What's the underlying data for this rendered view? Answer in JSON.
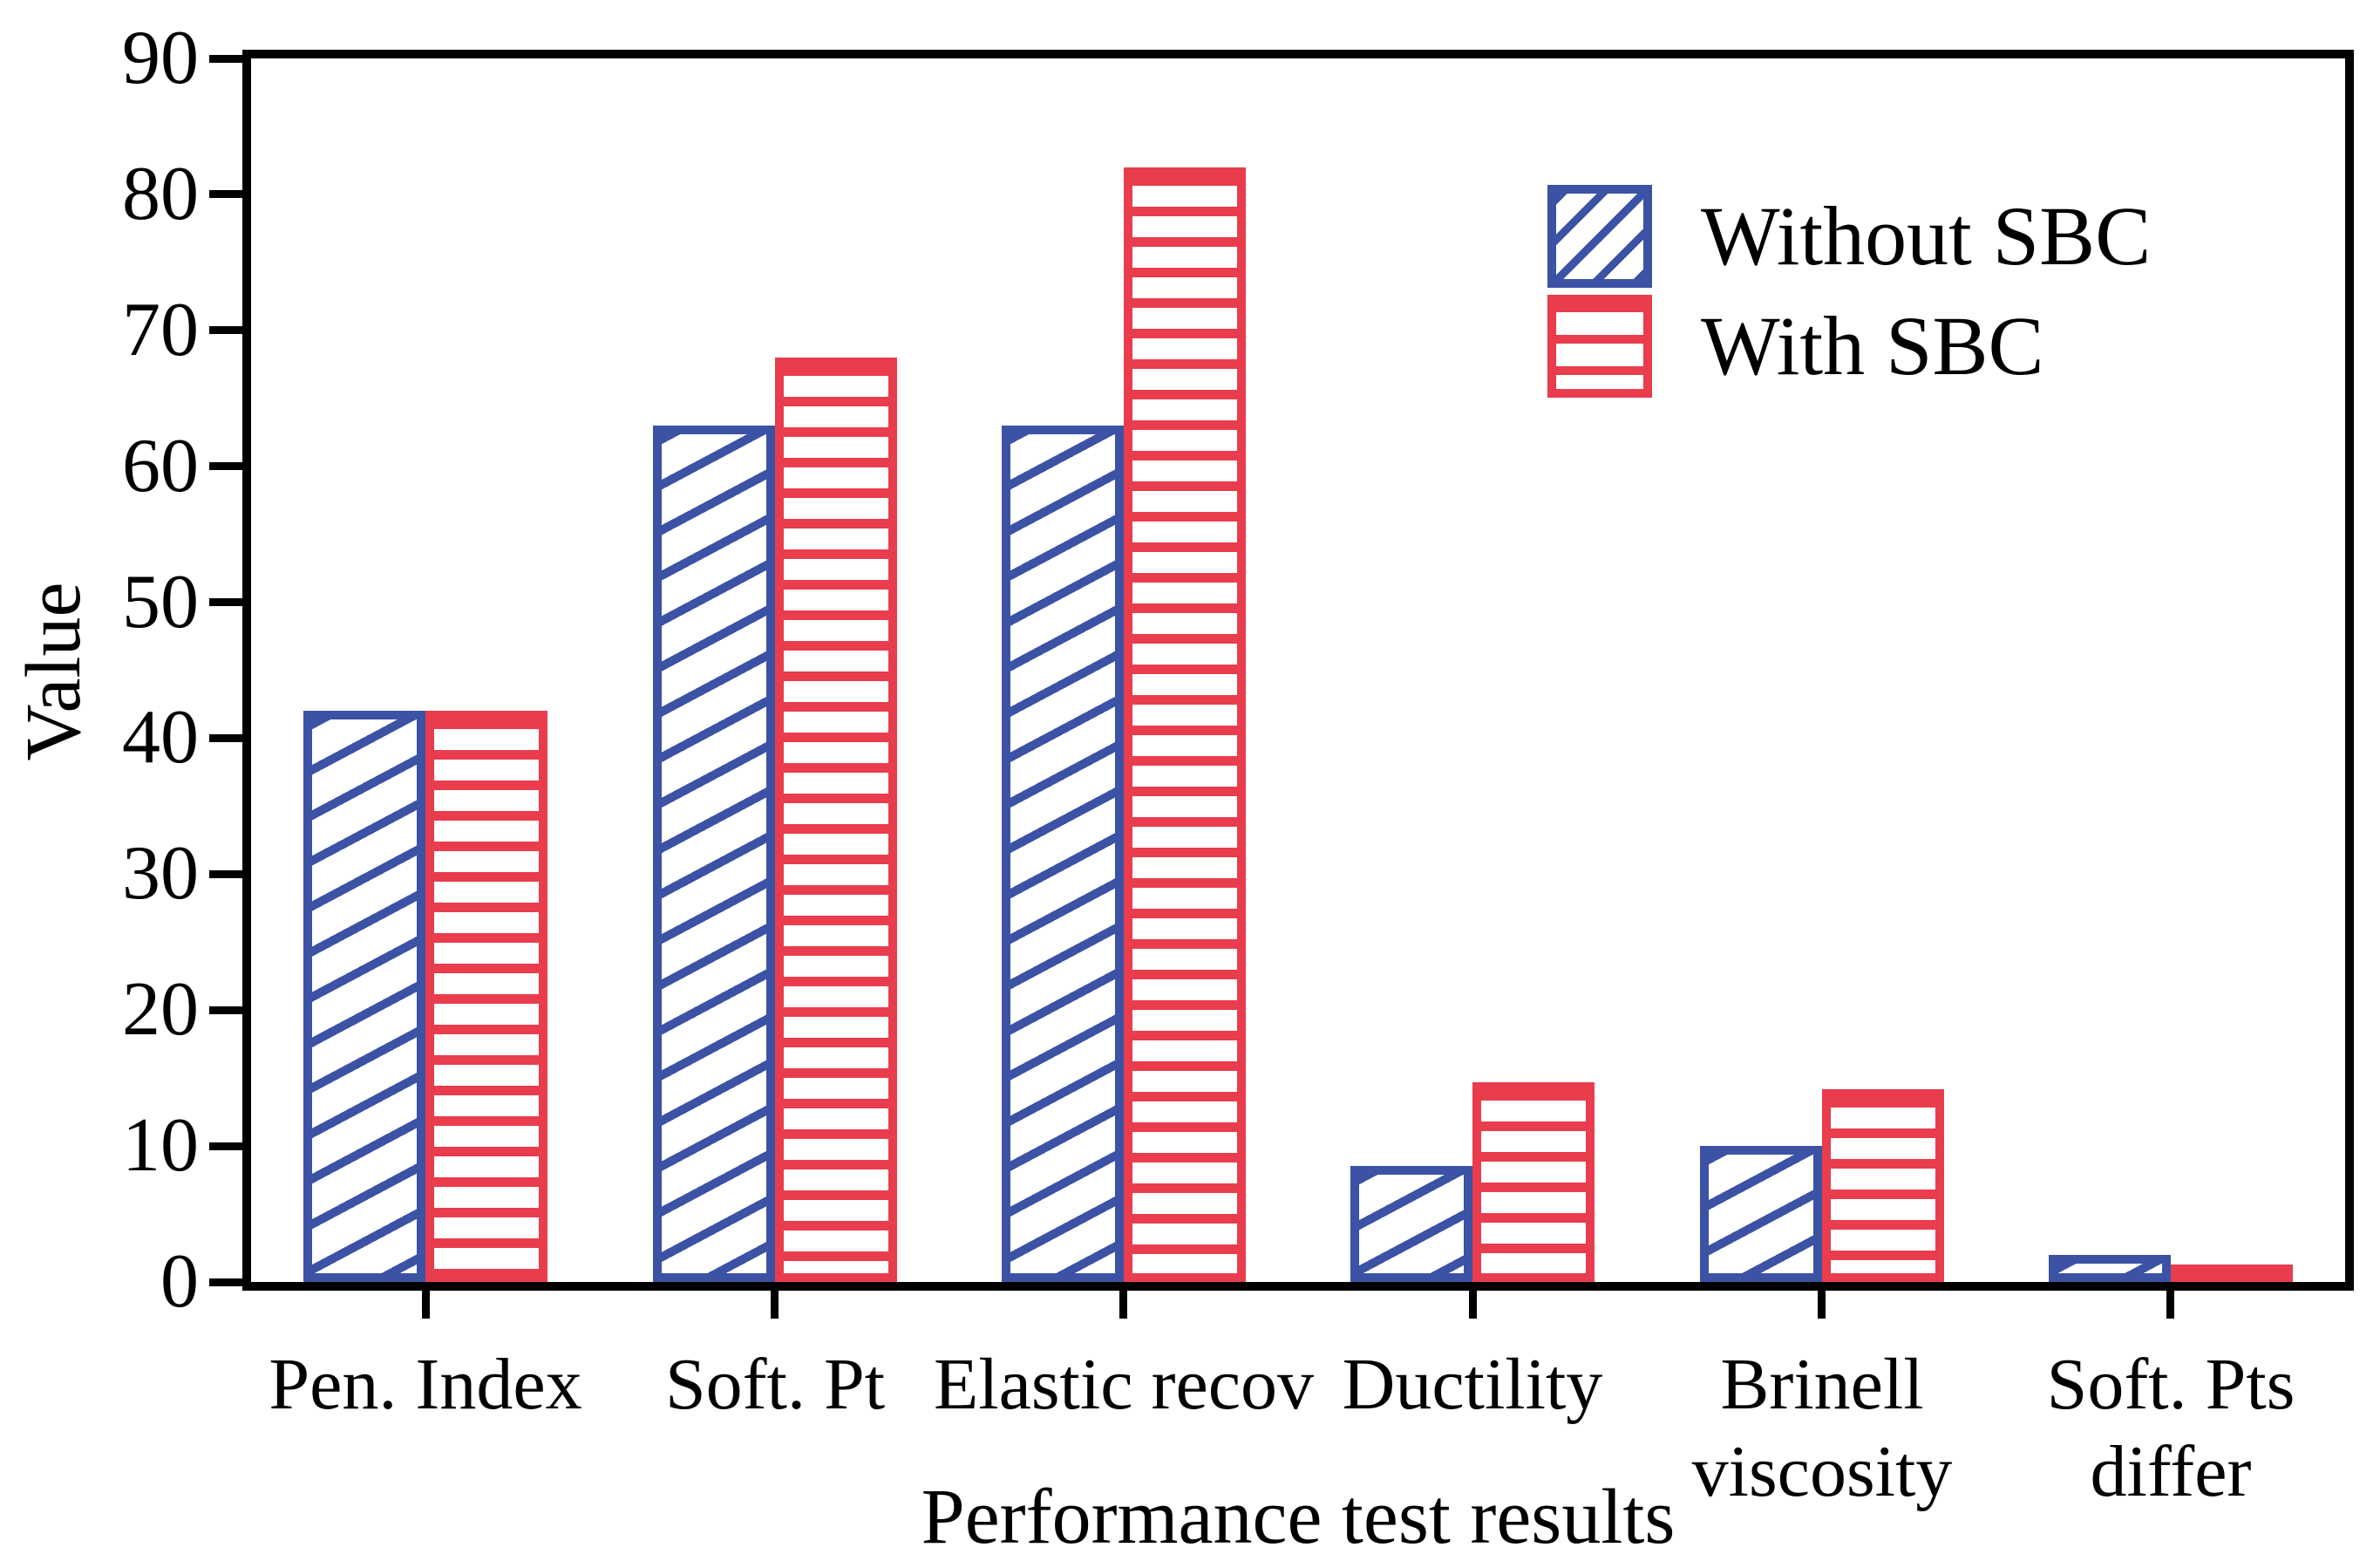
{
  "figure": {
    "background": "#ffffff",
    "frame_color": "#000000",
    "text_color": "#000000"
  },
  "chart_data": {
    "type": "bar",
    "title": "",
    "xlabel": "Performance test results",
    "ylabel": "Value",
    "ylim": [
      0,
      90
    ],
    "y_ticks": [
      0,
      10,
      20,
      30,
      40,
      50,
      60,
      70,
      80,
      90
    ],
    "grid": false,
    "legend_position": "upper-right",
    "categories": [
      "Pen. Index",
      "Soft. Pt",
      "Elastic recov",
      "Ductility",
      "Brinell viscosity",
      "Soft. Pts differ"
    ],
    "category_label_lines": [
      [
        "Pen. Index"
      ],
      [
        "Soft. Pt"
      ],
      [
        "Elastic recov"
      ],
      [
        "Ductility"
      ],
      [
        "Brinell",
        "viscosity"
      ],
      [
        "Soft. Pts",
        "differ"
      ]
    ],
    "series": [
      {
        "name": "Without SBC",
        "color": "#3b52a5",
        "hatch": "diagonal",
        "values": [
          42,
          63,
          63,
          8.5,
          10,
          2
        ]
      },
      {
        "name": "With SBC",
        "color": "#e93c4d",
        "hatch": "horizontal",
        "values": [
          42,
          68,
          82,
          14.7,
          14.2,
          0.7
        ]
      }
    ]
  }
}
